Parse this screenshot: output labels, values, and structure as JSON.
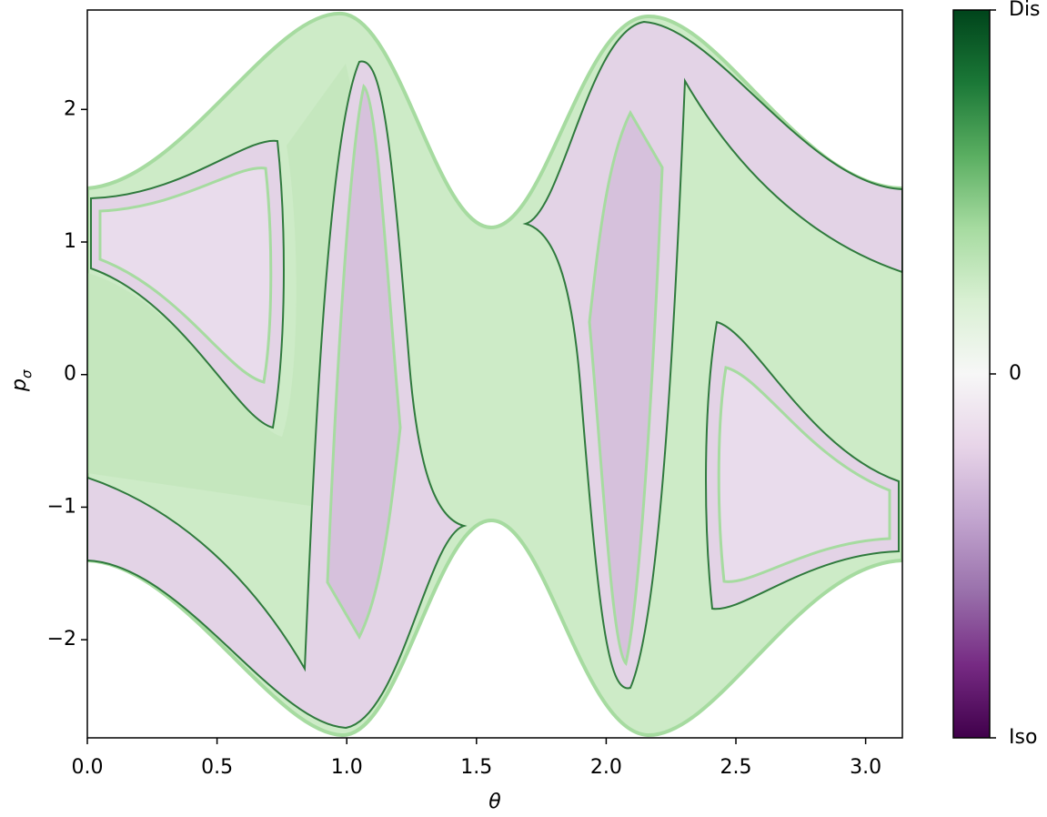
{
  "chart_data": {
    "type": "contour",
    "xlabel": "θ",
    "ylabel": {
      "base": "p",
      "sub": "σ"
    },
    "xlim": [
      0,
      3.1416
    ],
    "ylim": [
      -2.74,
      2.75
    ],
    "xticks": [
      {
        "value": 0,
        "label": "0.0"
      },
      0.5,
      {
        "value": 1,
        "label": "1.0"
      },
      1.5,
      {
        "value": 2,
        "label": "2.0"
      },
      2.5,
      {
        "value": 3,
        "label": "3.0"
      }
    ],
    "yticks": [
      {
        "value": -2,
        "label": "−2"
      },
      {
        "value": -1,
        "label": "−1"
      },
      0,
      1,
      2
    ],
    "colorbar": {
      "lim": [
        -1,
        1
      ],
      "ticks": [
        {
          "value": -1,
          "label": "Iso"
        },
        0,
        {
          "value": 1,
          "label": "Dis"
        }
      ],
      "colors": [
        "#40004b",
        "#762a83",
        "#9970ab",
        "#c2a5cf",
        "#e7d4e8",
        "#f7f7f7",
        "#d9f0d3",
        "#a6dba0",
        "#5aae61",
        "#1b7837",
        "#00441b"
      ]
    }
  }
}
